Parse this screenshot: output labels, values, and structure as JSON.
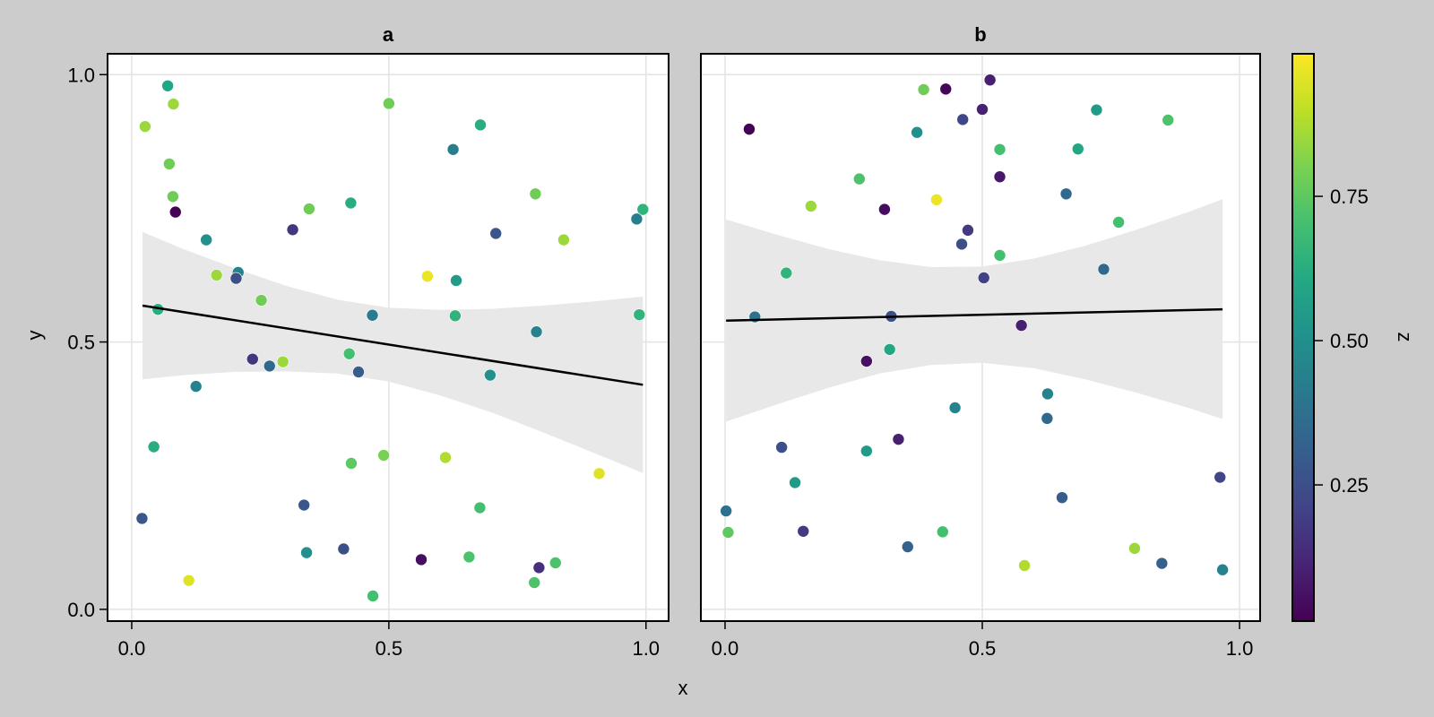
{
  "chart_data": {
    "type": "scatter",
    "xlabel": "x",
    "ylabel": "y",
    "grid": true,
    "colormap": "viridis",
    "colorbar": {
      "label": "z",
      "range": [
        0.014,
        0.997
      ],
      "ticks": [
        0.25,
        0.5,
        0.75
      ],
      "tick_labels": [
        "0.25",
        "0.50",
        "0.75"
      ],
      "placement": "right"
    },
    "viridis_stops": [
      "#440154",
      "#482475",
      "#414487",
      "#355f8d",
      "#2a788e",
      "#21918c",
      "#22a884",
      "#44bf70",
      "#7ad151",
      "#bddf26",
      "#fde725"
    ],
    "band_color": "#e8e8e8",
    "line_color": "#000000",
    "panels": [
      {
        "title": "a",
        "xlim": [
          -0.047,
          1.044
        ],
        "ylim": [
          -0.022,
          1.039
        ],
        "xticks": [
          0,
          0.5,
          1
        ],
        "xtick_labels": [
          "0.0",
          "0.5",
          "1.0"
        ],
        "yticks": [
          0,
          0.5,
          1
        ],
        "ytick_labels": [
          "0.0",
          "0.5",
          "1.0"
        ],
        "show_yticks": true,
        "points": [
          [
            0.07,
            0.979,
            0.6
          ],
          [
            0.081,
            0.945,
            0.85
          ],
          [
            0.026,
            0.903,
            0.85
          ],
          [
            0.073,
            0.833,
            0.78
          ],
          [
            0.08,
            0.772,
            0.78
          ],
          [
            0.085,
            0.743,
            0.02
          ],
          [
            0.145,
            0.691,
            0.5
          ],
          [
            0.165,
            0.625,
            0.85
          ],
          [
            0.207,
            0.63,
            0.45
          ],
          [
            0.203,
            0.619,
            0.25
          ],
          [
            0.252,
            0.578,
            0.78
          ],
          [
            0.051,
            0.561,
            0.62
          ],
          [
            0.313,
            0.71,
            0.17
          ],
          [
            0.345,
            0.749,
            0.78
          ],
          [
            0.426,
            0.76,
            0.62
          ],
          [
            0.5,
            0.946,
            0.78
          ],
          [
            0.468,
            0.55,
            0.42
          ],
          [
            0.678,
            0.906,
            0.62
          ],
          [
            0.625,
            0.86,
            0.43
          ],
          [
            0.785,
            0.777,
            0.78
          ],
          [
            0.994,
            0.748,
            0.65
          ],
          [
            0.982,
            0.73,
            0.43
          ],
          [
            0.708,
            0.703,
            0.28
          ],
          [
            0.84,
            0.691,
            0.85
          ],
          [
            0.575,
            0.623,
            0.97
          ],
          [
            0.631,
            0.615,
            0.55
          ],
          [
            0.629,
            0.549,
            0.65
          ],
          [
            0.987,
            0.551,
            0.65
          ],
          [
            0.787,
            0.519,
            0.45
          ],
          [
            0.235,
            0.468,
            0.17
          ],
          [
            0.268,
            0.455,
            0.35
          ],
          [
            0.294,
            0.463,
            0.85
          ],
          [
            0.423,
            0.478,
            0.7
          ],
          [
            0.441,
            0.444,
            0.3
          ],
          [
            0.125,
            0.417,
            0.45
          ],
          [
            0.043,
            0.304,
            0.62
          ],
          [
            0.49,
            0.288,
            0.8
          ],
          [
            0.427,
            0.273,
            0.75
          ],
          [
            0.02,
            0.17,
            0.28
          ],
          [
            0.335,
            0.195,
            0.28
          ],
          [
            0.34,
            0.106,
            0.5
          ],
          [
            0.412,
            0.113,
            0.25
          ],
          [
            0.111,
            0.054,
            0.95
          ],
          [
            0.469,
            0.025,
            0.7
          ],
          [
            0.697,
            0.438,
            0.5
          ],
          [
            0.61,
            0.284,
            0.88
          ],
          [
            0.909,
            0.254,
            0.95
          ],
          [
            0.677,
            0.19,
            0.7
          ],
          [
            0.563,
            0.093,
            0.05
          ],
          [
            0.656,
            0.098,
            0.72
          ],
          [
            0.824,
            0.087,
            0.72
          ],
          [
            0.792,
            0.078,
            0.15
          ],
          [
            0.783,
            0.05,
            0.72
          ]
        ],
        "fit": {
          "x": [
            0.021,
            0.994
          ],
          "y": [
            0.568,
            0.42
          ]
        },
        "band": {
          "x": [
            0.021,
            0.1,
            0.2,
            0.3,
            0.4,
            0.5,
            0.6,
            0.7,
            0.8,
            0.9,
            0.994
          ],
          "lower": [
            0.43,
            0.438,
            0.444,
            0.445,
            0.441,
            0.426,
            0.4,
            0.368,
            0.331,
            0.292,
            0.255
          ],
          "upper": [
            0.706,
            0.674,
            0.638,
            0.605,
            0.579,
            0.564,
            0.56,
            0.562,
            0.568,
            0.576,
            0.585
          ]
        }
      },
      {
        "title": "b",
        "xlim": [
          -0.047,
          1.04
        ],
        "ylim": [
          -0.022,
          1.039
        ],
        "xticks": [
          0,
          0.5,
          1
        ],
        "xtick_labels": [
          "0.0",
          "0.5",
          "1.0"
        ],
        "yticks": [
          0,
          0.5,
          1
        ],
        "show_yticks": false,
        "points": [
          [
            0.386,
            0.972,
            0.78
          ],
          [
            0.429,
            0.973,
            0.03
          ],
          [
            0.462,
            0.916,
            0.22
          ],
          [
            0.047,
            0.898,
            0.02
          ],
          [
            0.373,
            0.892,
            0.5
          ],
          [
            0.261,
            0.805,
            0.72
          ],
          [
            0.167,
            0.754,
            0.85
          ],
          [
            0.31,
            0.748,
            0.05
          ],
          [
            0.411,
            0.766,
            0.97
          ],
          [
            0.472,
            0.709,
            0.18
          ],
          [
            0.46,
            0.683,
            0.25
          ],
          [
            0.119,
            0.629,
            0.65
          ],
          [
            0.058,
            0.547,
            0.38
          ],
          [
            0.323,
            0.548,
            0.25
          ],
          [
            0.515,
            0.99,
            0.1
          ],
          [
            0.5,
            0.935,
            0.1
          ],
          [
            0.722,
            0.934,
            0.55
          ],
          [
            0.861,
            0.915,
            0.72
          ],
          [
            0.534,
            0.86,
            0.7
          ],
          [
            0.686,
            0.861,
            0.6
          ],
          [
            0.534,
            0.809,
            0.08
          ],
          [
            0.663,
            0.777,
            0.35
          ],
          [
            0.765,
            0.724,
            0.7
          ],
          [
            0.534,
            0.662,
            0.7
          ],
          [
            0.503,
            0.62,
            0.2
          ],
          [
            0.736,
            0.636,
            0.35
          ],
          [
            0.576,
            0.531,
            0.1
          ],
          [
            0.32,
            0.486,
            0.6
          ],
          [
            0.275,
            0.464,
            0.06
          ],
          [
            0.447,
            0.377,
            0.45
          ],
          [
            0.337,
            0.318,
            0.1
          ],
          [
            0.11,
            0.303,
            0.25
          ],
          [
            0.275,
            0.296,
            0.55
          ],
          [
            0.136,
            0.237,
            0.55
          ],
          [
            0.002,
            0.184,
            0.38
          ],
          [
            0.006,
            0.144,
            0.75
          ],
          [
            0.152,
            0.146,
            0.18
          ],
          [
            0.423,
            0.145,
            0.7
          ],
          [
            0.355,
            0.117,
            0.32
          ],
          [
            0.627,
            0.403,
            0.45
          ],
          [
            0.626,
            0.357,
            0.35
          ],
          [
            0.962,
            0.247,
            0.22
          ],
          [
            0.655,
            0.209,
            0.3
          ],
          [
            0.796,
            0.114,
            0.85
          ],
          [
            0.582,
            0.082,
            0.88
          ],
          [
            0.849,
            0.086,
            0.32
          ],
          [
            0.967,
            0.074,
            0.45
          ]
        ],
        "fit": {
          "x": [
            0.002,
            0.967
          ],
          "y": [
            0.54,
            0.561
          ]
        },
        "band": {
          "x": [
            0.002,
            0.1,
            0.2,
            0.3,
            0.4,
            0.5,
            0.6,
            0.7,
            0.8,
            0.9,
            0.967
          ],
          "lower": [
            0.351,
            0.383,
            0.414,
            0.441,
            0.457,
            0.461,
            0.451,
            0.43,
            0.405,
            0.377,
            0.356
          ],
          "upper": [
            0.729,
            0.701,
            0.674,
            0.653,
            0.64,
            0.641,
            0.656,
            0.68,
            0.71,
            0.743,
            0.767
          ]
        }
      }
    ]
  }
}
